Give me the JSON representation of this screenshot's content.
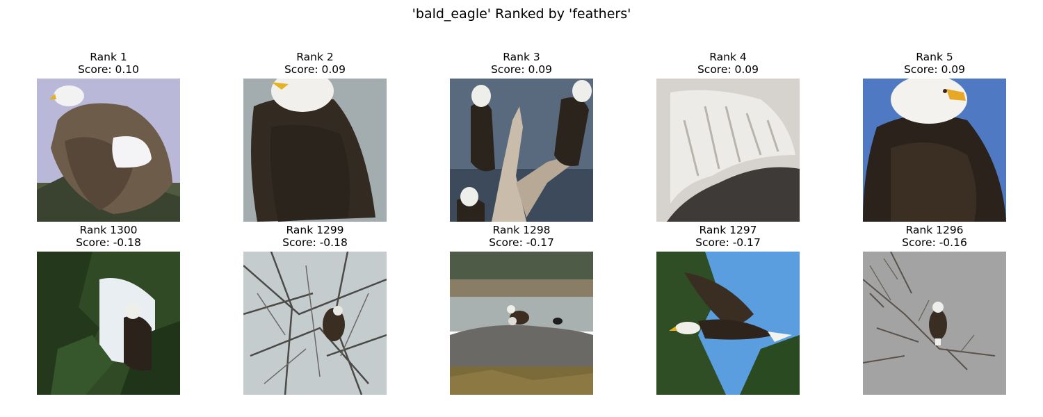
{
  "figure_title": "'bald_eagle' Ranked by 'feathers'",
  "top_row": [
    {
      "rank": "Rank 1",
      "score": "Score: 0.10",
      "image": "eagle-wings-spread-on-nest"
    },
    {
      "rank": "Rank 2",
      "score": "Score: 0.09",
      "image": "eagle-back-closeup"
    },
    {
      "rank": "Rank 3",
      "score": "Score: 0.09",
      "image": "three-eagles-on-driftwood"
    },
    {
      "rank": "Rank 4",
      "score": "Score: 0.09",
      "image": "white-feathers-closeup"
    },
    {
      "rank": "Rank 5",
      "score": "Score: 0.09",
      "image": "eagle-portrait-blue-sky"
    }
  ],
  "bottom_row": [
    {
      "rank": "Rank 1300",
      "score": "Score: -0.18",
      "image": "eagle-in-evergreen-tree"
    },
    {
      "rank": "Rank 1299",
      "score": "Score: -0.18",
      "image": "eagle-in-bare-branches"
    },
    {
      "rank": "Rank 1298",
      "score": "Score: -0.17",
      "image": "eagle-on-rock-by-water"
    },
    {
      "rank": "Rank 1297",
      "score": "Score: -0.17",
      "image": "eagle-in-flight"
    },
    {
      "rank": "Rank 1296",
      "score": "Score: -0.16",
      "image": "eagle-on-branch-grey-sky"
    }
  ]
}
